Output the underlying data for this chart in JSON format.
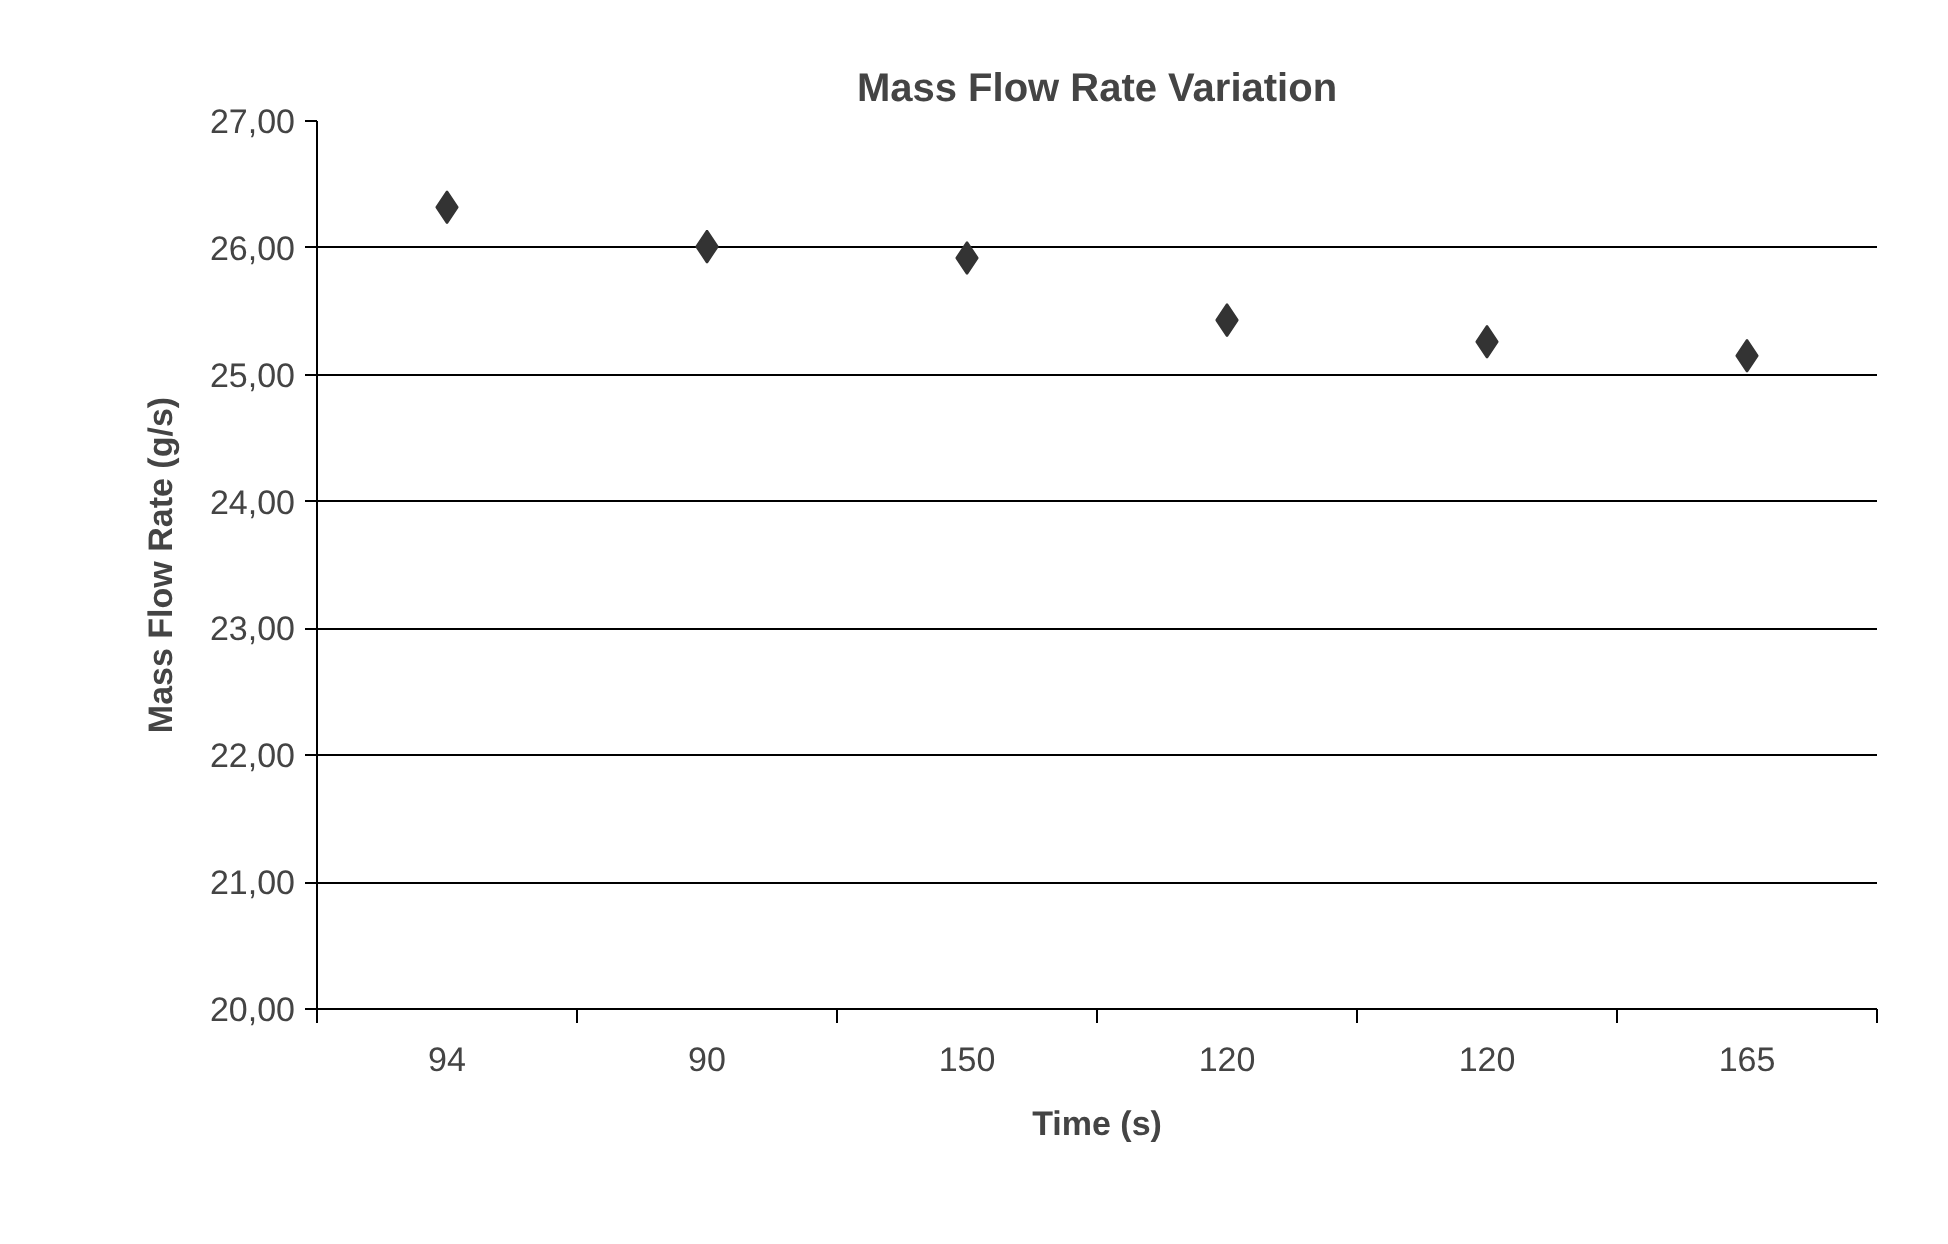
{
  "chart_data": {
    "type": "scatter",
    "title": "Mass Flow Rate Variation",
    "xlabel": "Time (s)",
    "ylabel": "Mass Flow Rate (g/s)",
    "categories": [
      "94",
      "90",
      "150",
      "120",
      "120",
      "165"
    ],
    "series": [
      {
        "color": "#333333",
        "values": [
          26.32,
          26.01,
          25.92,
          25.43,
          25.26,
          25.15
        ]
      }
    ],
    "ylim": [
      20,
      27
    ],
    "yticks": [
      {
        "value": 20,
        "label": "20,00"
      },
      {
        "value": 21,
        "label": "21,00"
      },
      {
        "value": 22,
        "label": "22,00"
      },
      {
        "value": 23,
        "label": "23,00"
      },
      {
        "value": 24,
        "label": "24,00"
      },
      {
        "value": 25,
        "label": "25,00"
      },
      {
        "value": 26,
        "label": "26,00"
      },
      {
        "value": 27,
        "label": "27,00"
      }
    ],
    "grid": "y",
    "marker": "diamond"
  }
}
